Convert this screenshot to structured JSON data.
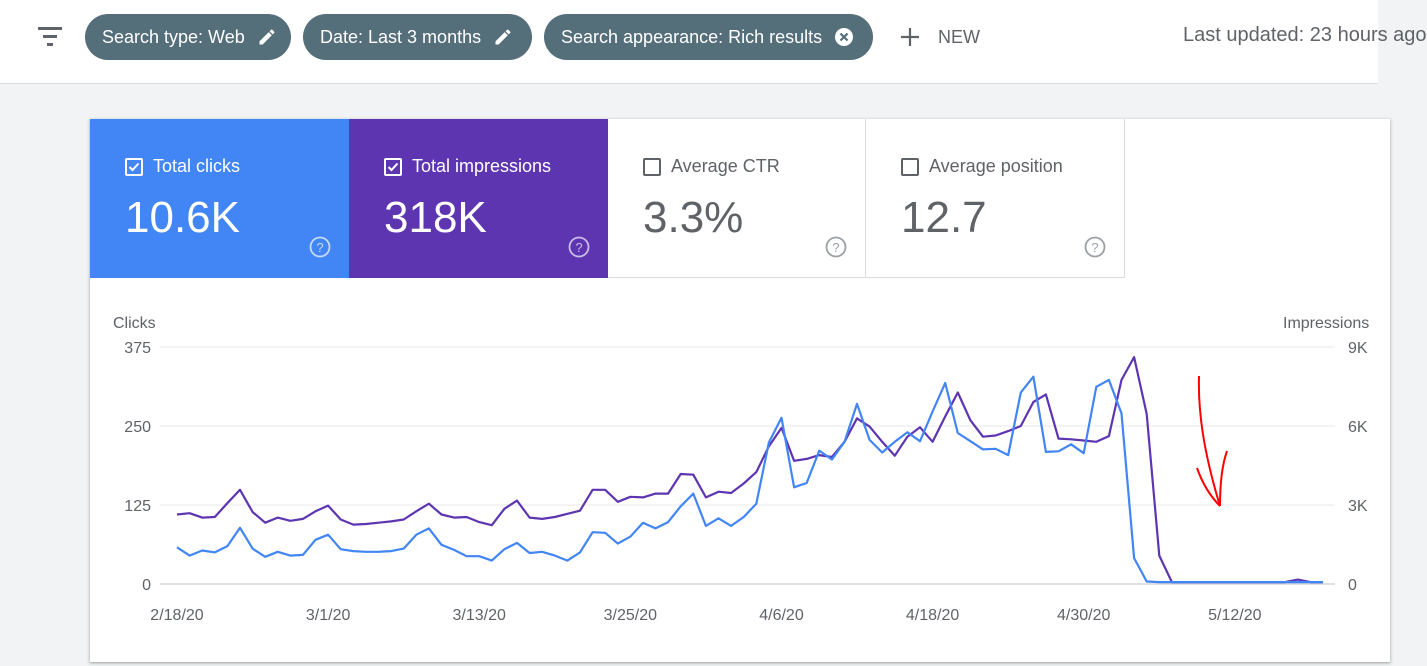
{
  "filters": {
    "menu_icon": "filter-list-icon",
    "chips": [
      {
        "label": "Search type: Web",
        "icon": "edit-icon"
      },
      {
        "label": "Date: Last 3 months",
        "icon": "edit-icon"
      },
      {
        "label": "Search appearance: Rich results",
        "icon": "close-icon"
      }
    ],
    "new_label": "NEW",
    "last_updated": "Last updated: 23 hours ago"
  },
  "metrics": [
    {
      "label": "Total clicks",
      "value": "10.6K",
      "checked": true,
      "color": "#4285f4"
    },
    {
      "label": "Total impressions",
      "value": "318K",
      "checked": true,
      "color": "#5e35b1"
    },
    {
      "label": "Average CTR",
      "value": "3.3%",
      "checked": false
    },
    {
      "label": "Average position",
      "value": "12.7",
      "checked": false
    }
  ],
  "chart_data": {
    "type": "line",
    "xlabel": "",
    "left_axis_label": "Clicks",
    "right_axis_label": "Impressions",
    "left_ticks": [
      "0",
      "125",
      "250",
      "375"
    ],
    "right_ticks": [
      "0",
      "3K",
      "6K",
      "9K"
    ],
    "left_ylim": [
      0,
      375
    ],
    "right_ylim": [
      0,
      9000
    ],
    "x_tick_labels": [
      "2/18/20",
      "3/1/20",
      "3/13/20",
      "3/25/20",
      "4/6/20",
      "4/18/20",
      "4/30/20",
      "5/12/20"
    ],
    "x_tick_index": [
      0,
      12,
      24,
      36,
      48,
      60,
      72,
      84
    ],
    "dates": [
      "2/18/20",
      "2/19/20",
      "2/20/20",
      "2/21/20",
      "2/22/20",
      "2/23/20",
      "2/24/20",
      "2/25/20",
      "2/26/20",
      "2/27/20",
      "2/28/20",
      "2/29/20",
      "3/1/20",
      "3/2/20",
      "3/3/20",
      "3/4/20",
      "3/5/20",
      "3/6/20",
      "3/7/20",
      "3/8/20",
      "3/9/20",
      "3/10/20",
      "3/11/20",
      "3/12/20",
      "3/13/20",
      "3/14/20",
      "3/15/20",
      "3/16/20",
      "3/17/20",
      "3/18/20",
      "3/19/20",
      "3/20/20",
      "3/21/20",
      "3/22/20",
      "3/23/20",
      "3/24/20",
      "3/25/20",
      "3/26/20",
      "3/27/20",
      "3/28/20",
      "3/29/20",
      "3/30/20",
      "3/31/20",
      "4/1/20",
      "4/2/20",
      "4/3/20",
      "4/4/20",
      "4/5/20",
      "4/6/20",
      "4/7/20",
      "4/8/20",
      "4/9/20",
      "4/10/20",
      "4/11/20",
      "4/12/20",
      "4/13/20",
      "4/14/20",
      "4/15/20",
      "4/16/20",
      "4/17/20",
      "4/18/20",
      "4/19/20",
      "4/20/20",
      "4/21/20",
      "4/22/20",
      "4/23/20",
      "4/24/20",
      "4/25/20",
      "4/26/20",
      "4/27/20",
      "4/28/20",
      "4/29/20",
      "4/30/20",
      "5/1/20",
      "5/2/20",
      "5/3/20",
      "5/4/20",
      "5/5/20",
      "5/6/20",
      "5/7/20",
      "5/8/20",
      "5/9/20",
      "5/10/20",
      "5/11/20",
      "5/12/20",
      "5/13/20",
      "5/14/20",
      "5/15/20",
      "5/16/20",
      "5/17/20",
      "5/18/20",
      "5/19/20"
    ],
    "series": [
      {
        "name": "Clicks",
        "axis": "left",
        "color": "#4285f4",
        "values": [
          58,
          45,
          53,
          50,
          60,
          89,
          56,
          43,
          51,
          45,
          46,
          70,
          78,
          55,
          52,
          51,
          51,
          52,
          56,
          78,
          88,
          62,
          54,
          44,
          44,
          37,
          55,
          65,
          49,
          51,
          45,
          37,
          50,
          82,
          81,
          64,
          75,
          97,
          88,
          98,
          123,
          143,
          92,
          104,
          92,
          106,
          127,
          224,
          263,
          153,
          160,
          211,
          197,
          225,
          285,
          228,
          208,
          225,
          240,
          226,
          273,
          318,
          239,
          226,
          213,
          214,
          204,
          303,
          328,
          209,
          210,
          221,
          207,
          312,
          323,
          270,
          41,
          4,
          3,
          3,
          3,
          3,
          3,
          3,
          3,
          3,
          3,
          3,
          3,
          3,
          3,
          3
        ],
        "note_none": ""
      },
      {
        "name": "Impressions",
        "axis": "left_scaled",
        "color": "#5e35b1",
        "values": [
          110,
          112,
          105,
          106,
          128,
          149,
          114,
          97,
          105,
          100,
          103,
          115,
          124,
          102,
          94,
          95,
          97,
          99,
          102,
          115,
          127,
          110,
          105,
          106,
          98,
          93,
          119,
          132,
          105,
          103,
          106,
          111,
          116,
          149,
          149,
          130,
          138,
          137,
          143,
          143,
          174,
          173,
          137,
          146,
          144,
          159,
          177,
          218,
          247,
          195,
          198,
          204,
          201,
          225,
          262,
          249,
          225,
          203,
          233,
          248,
          225,
          265,
          303,
          259,
          233,
          235,
          242,
          250,
          288,
          300,
          230,
          229,
          227,
          225,
          234,
          323,
          359,
          269,
          45,
          3,
          3,
          3,
          3,
          3,
          3,
          3,
          3,
          3,
          3,
          7,
          3,
          3
        ]
      }
    ],
    "annotation": "red-hand-drawn-arrow",
    "grid": true,
    "legend": "metric-cards-top"
  }
}
